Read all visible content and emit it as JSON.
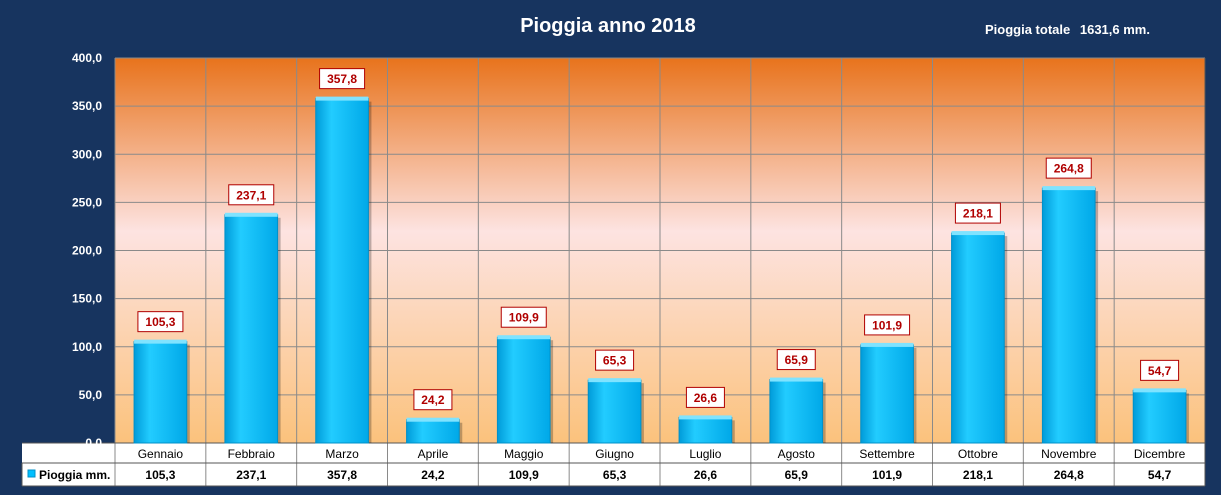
{
  "header": {
    "title": "Pioggia anno 2018",
    "total_label": "Pioggia totale",
    "total_value": "1631,6 mm."
  },
  "colors": {
    "background": "#17345f",
    "bar": "#00bfff",
    "label_text": "#b00000",
    "plot_top": "#e8731c",
    "plot_mid": "#fde3e1",
    "plot_bottom": "#fbc27c"
  },
  "chart_data": {
    "type": "bar",
    "categories": [
      "Gennaio",
      "Febbraio",
      "Marzo",
      "Aprile",
      "Maggio",
      "Giugno",
      "Luglio",
      "Agosto",
      "Settembre",
      "Ottobre",
      "Novembre",
      "Dicembre"
    ],
    "series": [
      {
        "name": "Pioggia mm.",
        "values": [
          105.3,
          237.1,
          357.8,
          24.2,
          109.9,
          65.3,
          26.6,
          65.9,
          101.9,
          218.1,
          264.8,
          54.7
        ],
        "labels": [
          "105,3",
          "237,1",
          "357,8",
          "24,2",
          "109,9",
          "65,3",
          "26,6",
          "65,9",
          "101,9",
          "218,1",
          "264,8",
          "54,7"
        ]
      }
    ],
    "ylim": [
      0,
      400
    ],
    "yticks": [
      0,
      50,
      100,
      150,
      200,
      250,
      300,
      350,
      400
    ],
    "ytick_labels": [
      "0,0",
      "50,0",
      "100,0",
      "150,0",
      "200,0",
      "250,0",
      "300,0",
      "350,0",
      "400,0"
    ],
    "grid": true,
    "data_table": true
  }
}
